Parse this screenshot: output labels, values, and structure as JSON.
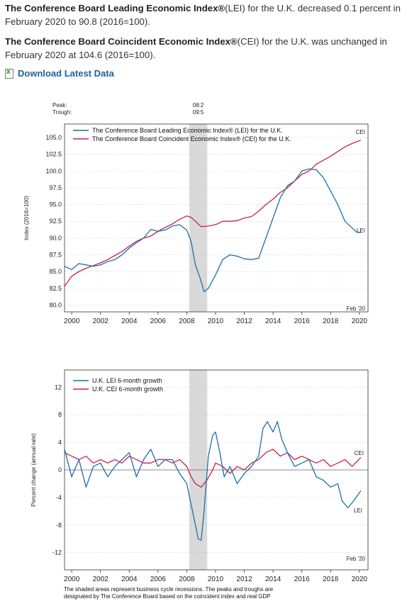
{
  "summary": {
    "lei_bold": "The Conference Board Leading Economic Index®",
    "lei_rest": "(LEI) for the U.K. decreased 0.1 percent in February 2020 to 90.8 (2016=100).",
    "cei_bold": "The Conference Board Coincident Economic Index®",
    "cei_rest": "(CEI) for the U.K. was unchanged in February 2020 at 104.6 (2016=100)."
  },
  "download": {
    "label": "Download Latest Data",
    "icon": "excel-file-icon"
  },
  "footnote": "The shaded areas represent business cycle recessions. The peaks and troughs are designated by The Conference Board based on the coincident index and real GDP",
  "colors": {
    "lei": "#1f6fa5",
    "cei": "#c8204f",
    "recession": "#d9d9d9"
  },
  "chart_data": [
    {
      "type": "line",
      "ylabel": "Index (2016=100)",
      "peak_label": "Peak:",
      "trough_label": "Trough:",
      "peak": "08:2",
      "trough": "09:5",
      "recession": [
        2008.17,
        2009.42
      ],
      "date_label": "Feb '20",
      "xlim": [
        1999.5,
        2020.6
      ],
      "ylim": [
        79,
        107
      ],
      "yticks": [
        "105.0",
        "102.5",
        "100.0",
        "97.5",
        "95.0",
        "92.5",
        "90.0",
        "87.5",
        "85.0",
        "82.5",
        "80.0"
      ],
      "xticks": [
        "2000",
        "2002",
        "2004",
        "2006",
        "2008",
        "2010",
        "2012",
        "2014",
        "2016",
        "2018",
        "2020"
      ],
      "series": [
        {
          "name": "The Conference Board Leading Economic Index® (LEI) for the U.K.",
          "end_label": "LEI",
          "x": [
            1999.5,
            2000.0,
            2000.5,
            2001.0,
            2001.5,
            2002.0,
            2002.5,
            2003.0,
            2003.5,
            2004.0,
            2004.5,
            2005.0,
            2005.5,
            2006.0,
            2006.5,
            2007.0,
            2007.5,
            2008.0,
            2008.3,
            2008.6,
            2008.9,
            2009.2,
            2009.5,
            2010.0,
            2010.5,
            2011.0,
            2011.5,
            2012.0,
            2012.5,
            2013.0,
            2013.5,
            2014.0,
            2014.5,
            2015.0,
            2015.5,
            2016.0,
            2016.5,
            2017.0,
            2017.5,
            2018.0,
            2018.5,
            2019.0,
            2019.5,
            2019.8,
            2020.1
          ],
          "y": [
            85.8,
            85.3,
            86.2,
            86.0,
            85.8,
            86.0,
            86.5,
            86.8,
            87.5,
            88.5,
            89.3,
            90.0,
            91.3,
            91.0,
            91.2,
            91.8,
            92.0,
            91.2,
            89.5,
            86.0,
            84.2,
            82.0,
            82.5,
            84.5,
            86.8,
            87.5,
            87.3,
            86.9,
            86.8,
            87.0,
            90.0,
            93.0,
            96.0,
            97.8,
            98.5,
            100.0,
            100.3,
            100.2,
            99.0,
            97.0,
            95.0,
            92.5,
            91.5,
            90.9,
            90.8
          ]
        },
        {
          "name": "The Conference Board Coincident Economic Index® (CEI) for the U.K.",
          "end_label": "CEI",
          "x": [
            1999.5,
            2000.0,
            2000.5,
            2001.0,
            2001.5,
            2002.0,
            2002.5,
            2003.0,
            2003.5,
            2004.0,
            2004.5,
            2005.0,
            2005.5,
            2006.0,
            2006.5,
            2007.0,
            2007.5,
            2008.0,
            2008.3,
            2008.6,
            2009.0,
            2009.5,
            2010.0,
            2010.5,
            2011.0,
            2011.5,
            2012.0,
            2012.5,
            2013.0,
            2013.5,
            2014.0,
            2014.5,
            2015.0,
            2015.5,
            2016.0,
            2016.5,
            2017.0,
            2017.5,
            2018.0,
            2018.5,
            2019.0,
            2019.5,
            2020.1
          ],
          "y": [
            82.8,
            84.3,
            85.0,
            85.5,
            85.9,
            86.3,
            86.8,
            87.4,
            88.0,
            88.8,
            89.5,
            90.0,
            90.3,
            91.0,
            91.6,
            92.1,
            92.8,
            93.3,
            93.1,
            92.5,
            91.7,
            91.8,
            92.0,
            92.5,
            92.5,
            92.6,
            93.0,
            93.2,
            94.0,
            95.0,
            95.8,
            96.8,
            97.5,
            98.5,
            99.5,
            100.0,
            101.0,
            101.6,
            102.2,
            102.9,
            103.6,
            104.1,
            104.6
          ]
        }
      ]
    },
    {
      "type": "line",
      "ylabel": "Percent change (annual rate)",
      "recession": [
        2008.17,
        2009.42
      ],
      "date_label": "Feb '20",
      "xlim": [
        1999.5,
        2020.6
      ],
      "ylim": [
        -14.5,
        14.5
      ],
      "yticks": [
        "12",
        "8",
        "4",
        "0",
        "-4",
        "-8",
        "-12"
      ],
      "xticks": [
        "2000",
        "2002",
        "2004",
        "2006",
        "2008",
        "2010",
        "2012",
        "2014",
        "2016",
        "2018",
        "2020"
      ],
      "series": [
        {
          "name": "U.K. LEI 6-month growth",
          "end_label": "LEI",
          "x": [
            1999.5,
            2000.0,
            2000.5,
            2001.0,
            2001.5,
            2002.0,
            2002.5,
            2003.0,
            2003.5,
            2004.0,
            2004.5,
            2005.0,
            2005.5,
            2006.0,
            2006.5,
            2007.0,
            2007.5,
            2008.0,
            2008.3,
            2008.6,
            2008.8,
            2009.0,
            2009.2,
            2009.5,
            2009.8,
            2010.0,
            2010.3,
            2010.6,
            2011.0,
            2011.5,
            2012.0,
            2012.5,
            2013.0,
            2013.3,
            2013.6,
            2014.0,
            2014.3,
            2014.6,
            2015.0,
            2015.5,
            2016.0,
            2016.5,
            2017.0,
            2017.5,
            2018.0,
            2018.5,
            2018.8,
            2019.2,
            2019.6,
            2020.1
          ],
          "y": [
            3.0,
            -1.0,
            1.5,
            -2.5,
            0.5,
            1.0,
            -1.0,
            0.5,
            1.5,
            2.5,
            -1.0,
            1.5,
            3.0,
            0.5,
            1.5,
            1.5,
            -0.5,
            -2.0,
            -5.0,
            -8.0,
            -10.0,
            -10.2,
            -6.0,
            2.0,
            5.0,
            5.5,
            2.5,
            -1.0,
            0.5,
            -2.0,
            -0.5,
            0.5,
            2.0,
            6.0,
            7.0,
            5.5,
            7.0,
            4.5,
            2.5,
            0.5,
            1.0,
            1.5,
            -1.0,
            -1.5,
            -2.5,
            -2.0,
            -4.5,
            -5.5,
            -4.5,
            -3.0
          ]
        },
        {
          "name": "U.K. CEI 6-month growth",
          "end_label": "CEI",
          "x": [
            1999.5,
            2000.0,
            2000.5,
            2001.0,
            2001.5,
            2002.0,
            2002.5,
            2003.0,
            2003.5,
            2004.0,
            2004.5,
            2005.0,
            2005.5,
            2006.0,
            2006.5,
            2007.0,
            2007.5,
            2008.0,
            2008.3,
            2008.6,
            2009.0,
            2009.4,
            2009.8,
            2010.0,
            2010.5,
            2011.0,
            2011.5,
            2012.0,
            2012.5,
            2013.0,
            2013.5,
            2014.0,
            2014.5,
            2015.0,
            2015.5,
            2016.0,
            2016.5,
            2017.0,
            2017.5,
            2018.0,
            2018.5,
            2019.0,
            2019.5,
            2020.1
          ],
          "y": [
            2.5,
            2.0,
            1.5,
            2.0,
            1.0,
            1.5,
            1.0,
            1.5,
            1.0,
            2.0,
            1.5,
            1.0,
            1.0,
            1.5,
            1.5,
            1.0,
            1.5,
            0.5,
            -1.0,
            -2.0,
            -2.5,
            -1.5,
            0.0,
            1.0,
            0.5,
            -0.5,
            0.5,
            0.0,
            1.0,
            1.5,
            2.5,
            3.0,
            2.0,
            2.5,
            1.5,
            2.0,
            1.5,
            1.0,
            1.5,
            0.5,
            1.0,
            1.5,
            0.5,
            1.8
          ]
        }
      ]
    }
  ],
  "charts": [
    {
      "legend": [
        "The Conference Board Leading Economic Index® (LEI) for the U.K.",
        "The Conference Board Coincident Economic Index® (CEI) for the U.K."
      ]
    },
    {
      "legend": [
        "U.K. LEI 6-month growth",
        "U.K. CEI 6-month growth"
      ]
    }
  ]
}
